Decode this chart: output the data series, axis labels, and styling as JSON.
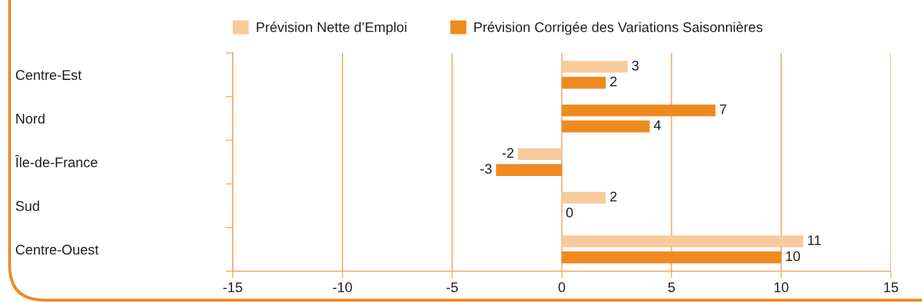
{
  "chart_data": {
    "type": "bar",
    "orientation": "horizontal",
    "categories": [
      "Centre-Est",
      "Nord",
      "Île-de-France",
      "Sud",
      "Centre-Ouest"
    ],
    "series": [
      {
        "name": "Prévision Nette d’Emploi",
        "color": "#f8cb9c",
        "colors": [
          "#f8cb9c",
          "#ee8a1f",
          "#f8cb9c",
          "#f8cb9c",
          "#f8cb9c"
        ],
        "values": [
          3,
          7,
          -2,
          2,
          11
        ]
      },
      {
        "name": "Prévision Corrigée des Variations Saisonnières",
        "color": "#ee8a1f",
        "values": [
          2,
          4,
          -3,
          0,
          10
        ]
      }
    ],
    "xlim": [
      -15,
      15
    ],
    "xticks": [
      -15,
      -10,
      -5,
      0,
      5,
      10,
      15
    ],
    "grid": "x",
    "legend": "top",
    "data_labels": true
  }
}
